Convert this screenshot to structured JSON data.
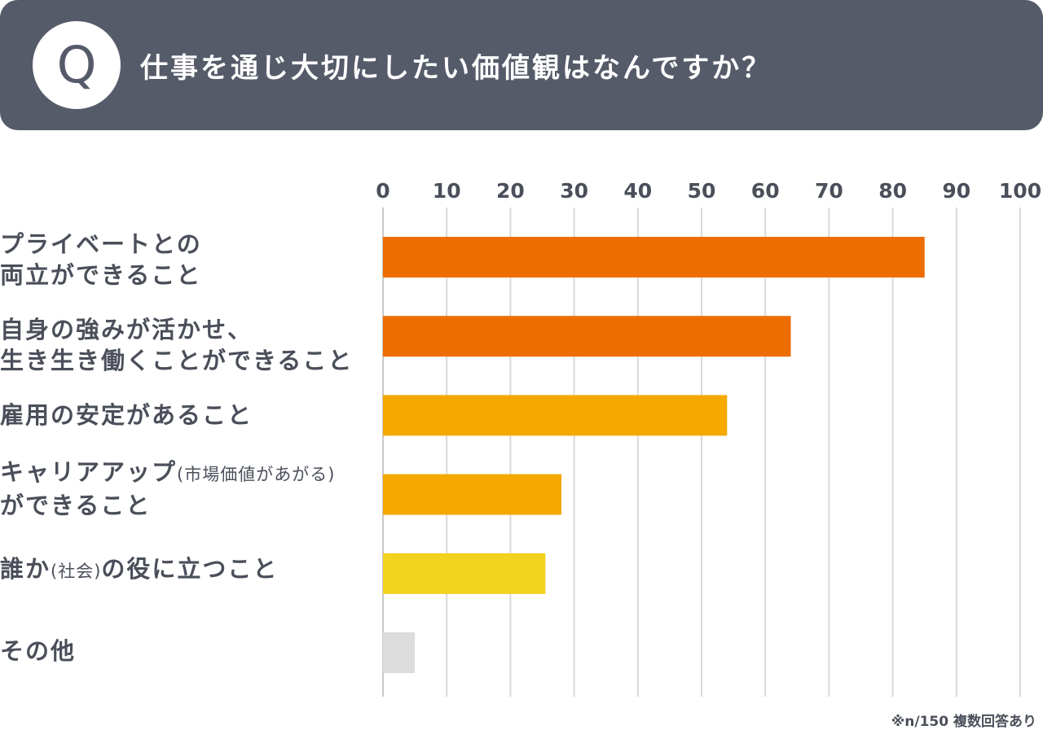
{
  "header": {
    "q_letter": "Q",
    "title": "仕事を通じ大切にしたい価値観はなんですか？"
  },
  "note": "※n/150 複数回答あり",
  "labels": [
    {
      "line1": "プライベートとの",
      "line2": "両立ができること"
    },
    {
      "line1": "自身の強みが活かせ、",
      "line2": "生き生き働くことができること"
    },
    {
      "line1": "雇用の安定があること"
    },
    {
      "line1_main": "キャリアアップ",
      "line1_small": "(市場価値があがる)",
      "line2": "ができること"
    },
    {
      "pre": "誰か",
      "small": "(社会)",
      "post": "の役に立つこと"
    },
    {
      "line1": "その他"
    }
  ],
  "colors": {
    "header_bg": "#555b69",
    "bar_dark_orange": "#ed6d00",
    "bar_orange": "#f5a800",
    "bar_yellow": "#f0d21f",
    "bar_gray": "#dcdcdc",
    "grid": "#d9d9d9"
  },
  "chart_data": {
    "type": "bar",
    "orientation": "horizontal",
    "title": "仕事を通じ大切にしたい価値観はなんですか？",
    "categories": [
      "プライベートとの両立ができること",
      "自身の強みが活かせ、生き生き働くことができること",
      "雇用の安定があること",
      "キャリアアップ(市場価値があがる)ができること",
      "誰か(社会)の役に立つこと",
      "その他"
    ],
    "values": [
      85,
      64,
      54,
      28,
      25.5,
      5
    ],
    "bar_colors": [
      "#ed6d00",
      "#ed6d00",
      "#f5a800",
      "#f5a800",
      "#f0d21f",
      "#dcdcdc"
    ],
    "xlim": [
      0,
      100
    ],
    "ticks": [
      0,
      10,
      20,
      30,
      40,
      50,
      60,
      70,
      80,
      90,
      100
    ],
    "grid": true,
    "xlabel": "",
    "ylabel": ""
  }
}
